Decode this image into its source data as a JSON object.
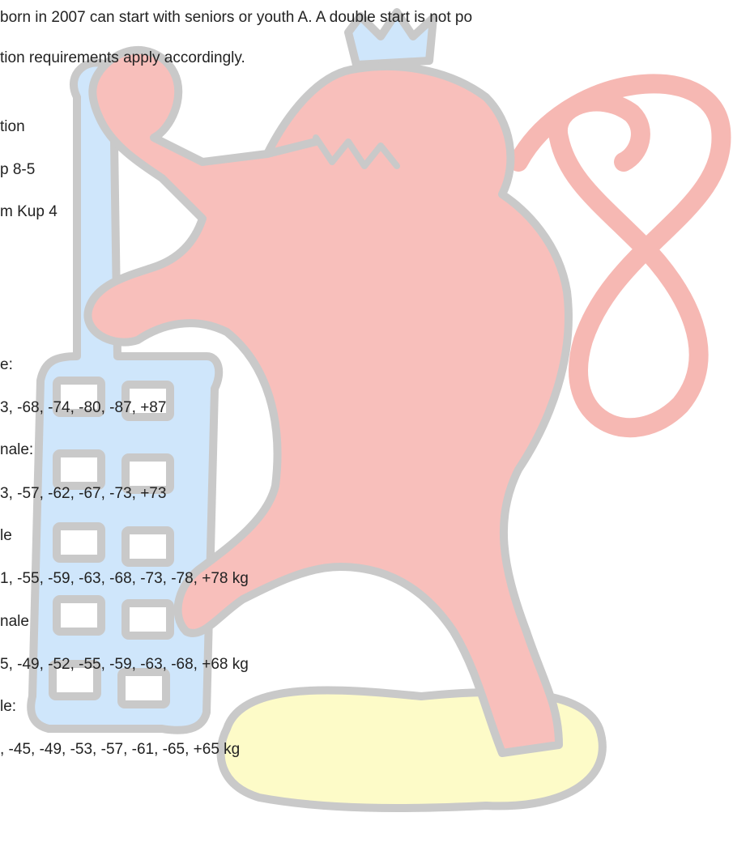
{
  "lines": [
    "born in 2007 can start with seniors or youth A. A double start is not po",
    "tion requirements apply accordingly.",
    "tion",
    "p 8-5",
    "m Kup 4",
    "e:",
    "3, -68, -74, -80, -87, +87",
    "nale:",
    "3, -57, -62, -67, -73, +73",
    "le",
    "1, -55, -59, -63, -68, -73, -78, +78 kg",
    "nale",
    "5, -49, -52, -55, -59, -63, -68, +68 kg",
    "le:",
    ", -45, -49, -53, -57, -61, -65, +65 kg"
  ]
}
